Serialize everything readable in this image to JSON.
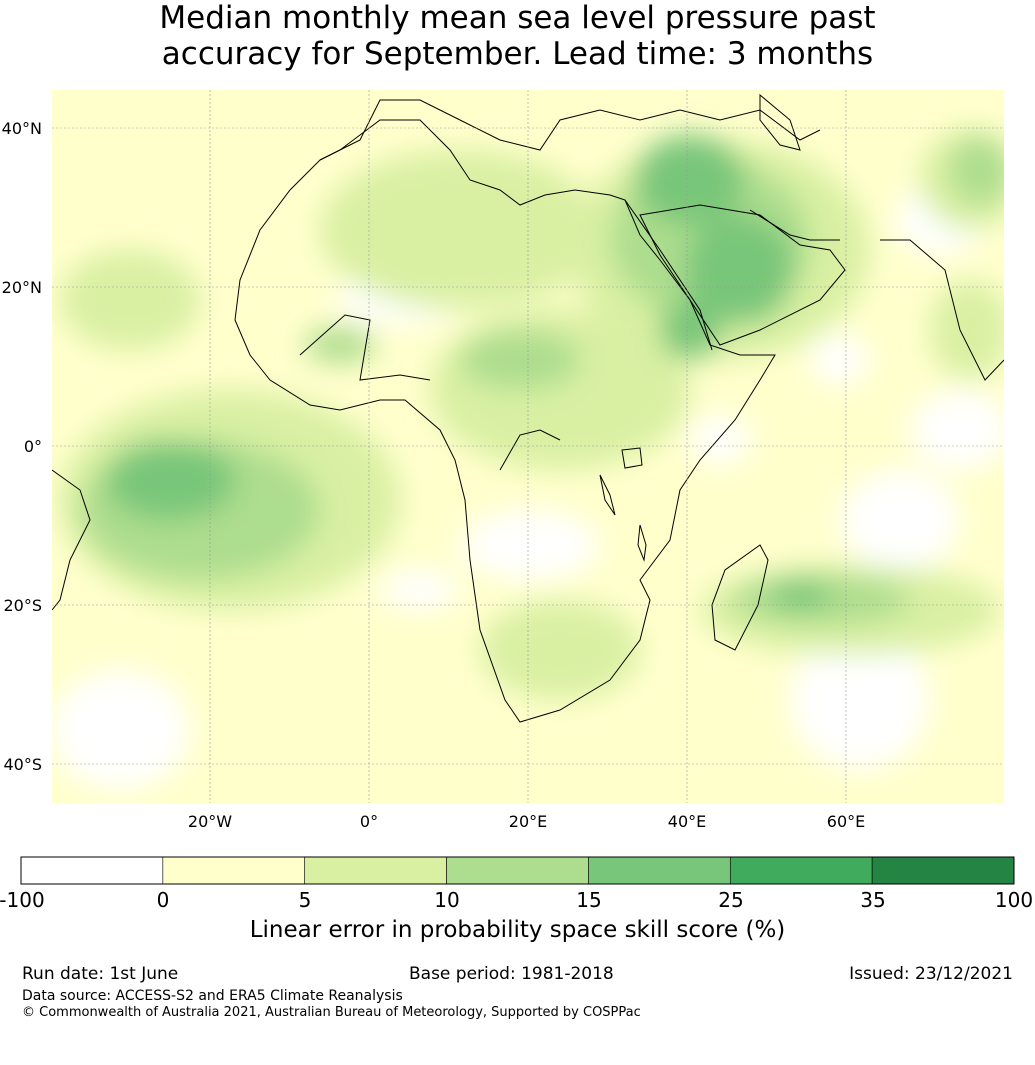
{
  "title": {
    "line1": "Median monthly mean sea level pressure past",
    "line2": "accuracy for September. Lead time: 3 months"
  },
  "map": {
    "lat_labels": [
      "40°N",
      "20°N",
      "0°",
      "20°S",
      "40°S"
    ],
    "lon_labels": [
      "20°W",
      "0°",
      "20°E",
      "40°E",
      "60°E"
    ],
    "gridlines": true,
    "land_outline_color": "#000000"
  },
  "colorbar": {
    "label": "Linear error in probability space skill score (%)",
    "ticks": [
      "-100",
      "0",
      "5",
      "10",
      "15",
      "25",
      "35",
      "100"
    ],
    "bins": [
      {
        "range": "-100 to 0",
        "color": "#ffffff"
      },
      {
        "range": "0 to 5",
        "color": "#ffffcc"
      },
      {
        "range": "5 to 10",
        "color": "#d9f0a3"
      },
      {
        "range": "10 to 15",
        "color": "#addd8e"
      },
      {
        "range": "15 to 25",
        "color": "#78c679"
      },
      {
        "range": "25 to 35",
        "color": "#41ab5d"
      },
      {
        "range": "35 to 100",
        "color": "#238443"
      }
    ]
  },
  "footer": {
    "run_date": "Run date: 1st June",
    "base_period": "Base period: 1981-2018",
    "issued": "Issued: 23/12/2021",
    "data_source": "Data source: ACCESS-S2 and ERA5 Climate Reanalysis",
    "copyright": "© Commonwealth of Australia 2021, Australian Bureau of Meteorology, Supported by COSPPac"
  }
}
